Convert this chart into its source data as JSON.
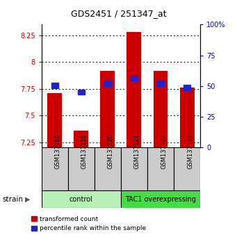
{
  "title": "GDS2451 / 251347_at",
  "samples": [
    "GSM137118",
    "GSM137119",
    "GSM137120",
    "GSM137121",
    "GSM137122",
    "GSM137123"
  ],
  "red_values": [
    7.71,
    7.36,
    7.92,
    8.28,
    7.92,
    7.76
  ],
  "blue_values": [
    7.78,
    7.72,
    7.8,
    7.85,
    7.8,
    7.76
  ],
  "ylim_left": [
    7.2,
    8.35
  ],
  "ylim_right": [
    0,
    100
  ],
  "yticks_left": [
    7.25,
    7.5,
    7.75,
    8.0,
    8.25
  ],
  "yticks_right": [
    0,
    25,
    50,
    75,
    100
  ],
  "ytick_labels_left": [
    "7.25",
    "7.5",
    "7.75",
    "8",
    "8.25"
  ],
  "ytick_labels_right": [
    "0",
    "25",
    "50",
    "75",
    "100%"
  ],
  "groups": [
    {
      "label": "control",
      "start": 0,
      "end": 2,
      "color": "#b8f0b8"
    },
    {
      "label": "TAC1 overexpressing",
      "start": 3,
      "end": 5,
      "color": "#44dd44"
    }
  ],
  "bar_bottom": 7.2,
  "bar_width": 0.55,
  "red_color": "#cc0000",
  "blue_color": "#2222cc",
  "bg_color": "#ffffff",
  "left_axis_color": "#cc0000",
  "right_axis_color": "#0000bb",
  "sample_box_color": "#cccccc",
  "strain_label": "strain",
  "legend_red": "transformed count",
  "legend_blue": "percentile rank within the sample",
  "title_fontsize": 9,
  "tick_fontsize": 7,
  "label_fontsize": 7
}
